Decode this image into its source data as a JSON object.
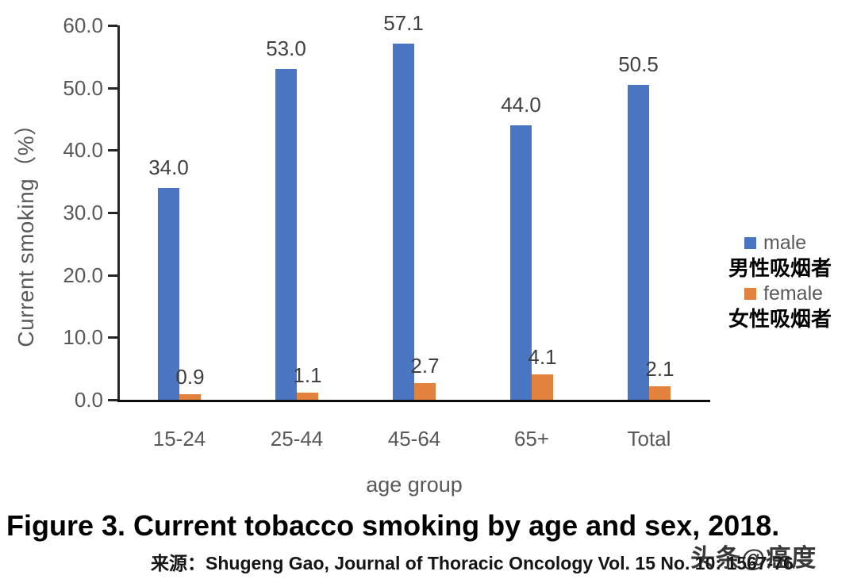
{
  "chart_data": {
    "type": "bar",
    "categories": [
      "15-24",
      "25-44",
      "45-64",
      "65+",
      "Total"
    ],
    "series": [
      {
        "name": "male",
        "name_zh": "男性吸烟者",
        "color": "#4A75C0",
        "values": [
          34.0,
          53.0,
          57.1,
          44.0,
          50.5
        ],
        "labels": [
          "34.0",
          "53.0",
          "57.1",
          "44.0",
          "50.5"
        ]
      },
      {
        "name": "female",
        "name_zh": "女性吸烟者",
        "color": "#E2823E",
        "values": [
          0.9,
          1.1,
          2.7,
          4.1,
          2.1
        ],
        "labels": [
          "0.9",
          "1.1",
          "2.7",
          "4.1",
          "2.1"
        ]
      }
    ],
    "xlabel": "age group",
    "ylabel": "Current smoking（%）",
    "ylim": [
      0,
      60
    ],
    "yticks": [
      0,
      10,
      20,
      30,
      40,
      50,
      60
    ],
    "ytick_labels": [
      "0.0",
      "10.0",
      "20.0",
      "30.0",
      "40.0",
      "50.0",
      "60.0"
    ],
    "legend_position": "right",
    "grid": false
  },
  "caption": {
    "prefix": "Figure 3.",
    "text": " Current tobacco smoking by age and sex, 2018."
  },
  "source": {
    "label": "来源：",
    "text": "Shugeng Gao, Journal of Thoracic Oncology Vol. 15 No. 10: 1567-76"
  },
  "watermark": "头条@癌度",
  "colors": {
    "male_bar": "#4A75C0",
    "female_bar": "#E2823E",
    "axis_text": "#595959",
    "data_label": "#404040",
    "axis_line": "#262626"
  }
}
